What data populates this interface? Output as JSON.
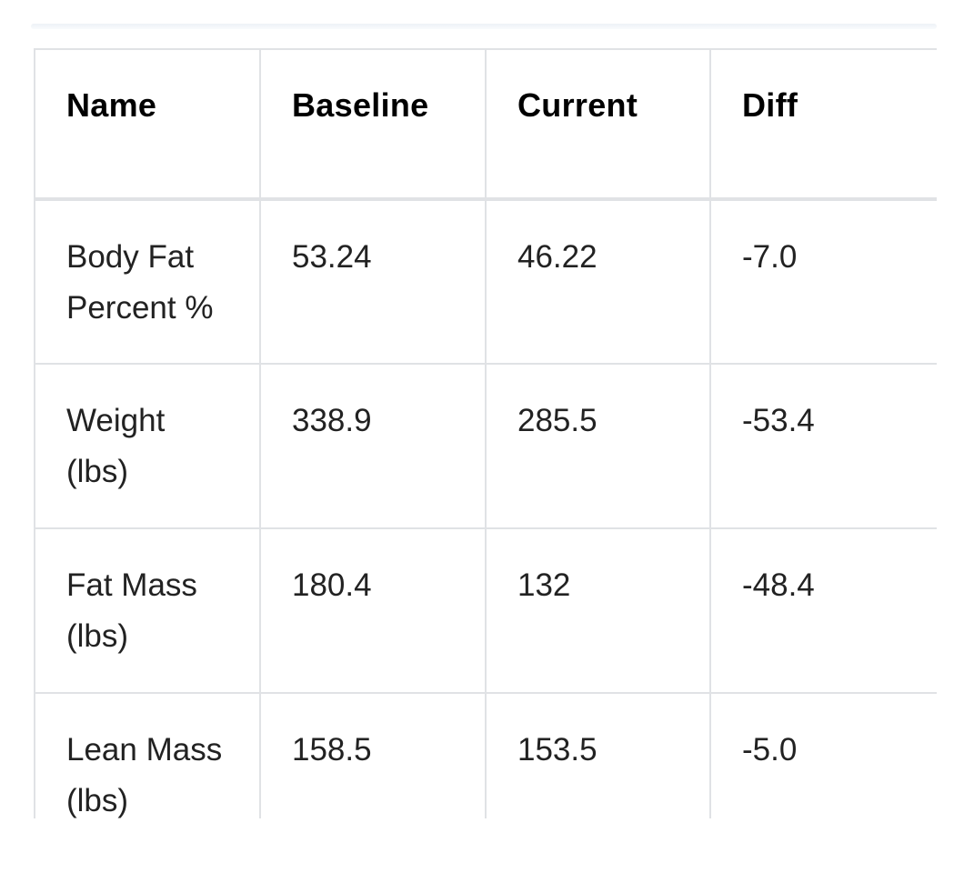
{
  "table": {
    "headers": [
      "Name",
      "Baseline",
      "Current",
      "Diff"
    ],
    "rows": [
      {
        "name": "Body Fat Percent %",
        "baseline": "53.24",
        "current": "46.22",
        "diff": "-7.0"
      },
      {
        "name": "Weight (lbs)",
        "baseline": "338.9",
        "current": "285.5",
        "diff": "-53.4"
      },
      {
        "name": "Fat Mass (lbs)",
        "baseline": "180.4",
        "current": "132",
        "diff": "-48.4"
      },
      {
        "name": "Lean Mass (lbs)",
        "baseline": "158.5",
        "current": "153.5",
        "diff": "-5.0"
      }
    ]
  }
}
